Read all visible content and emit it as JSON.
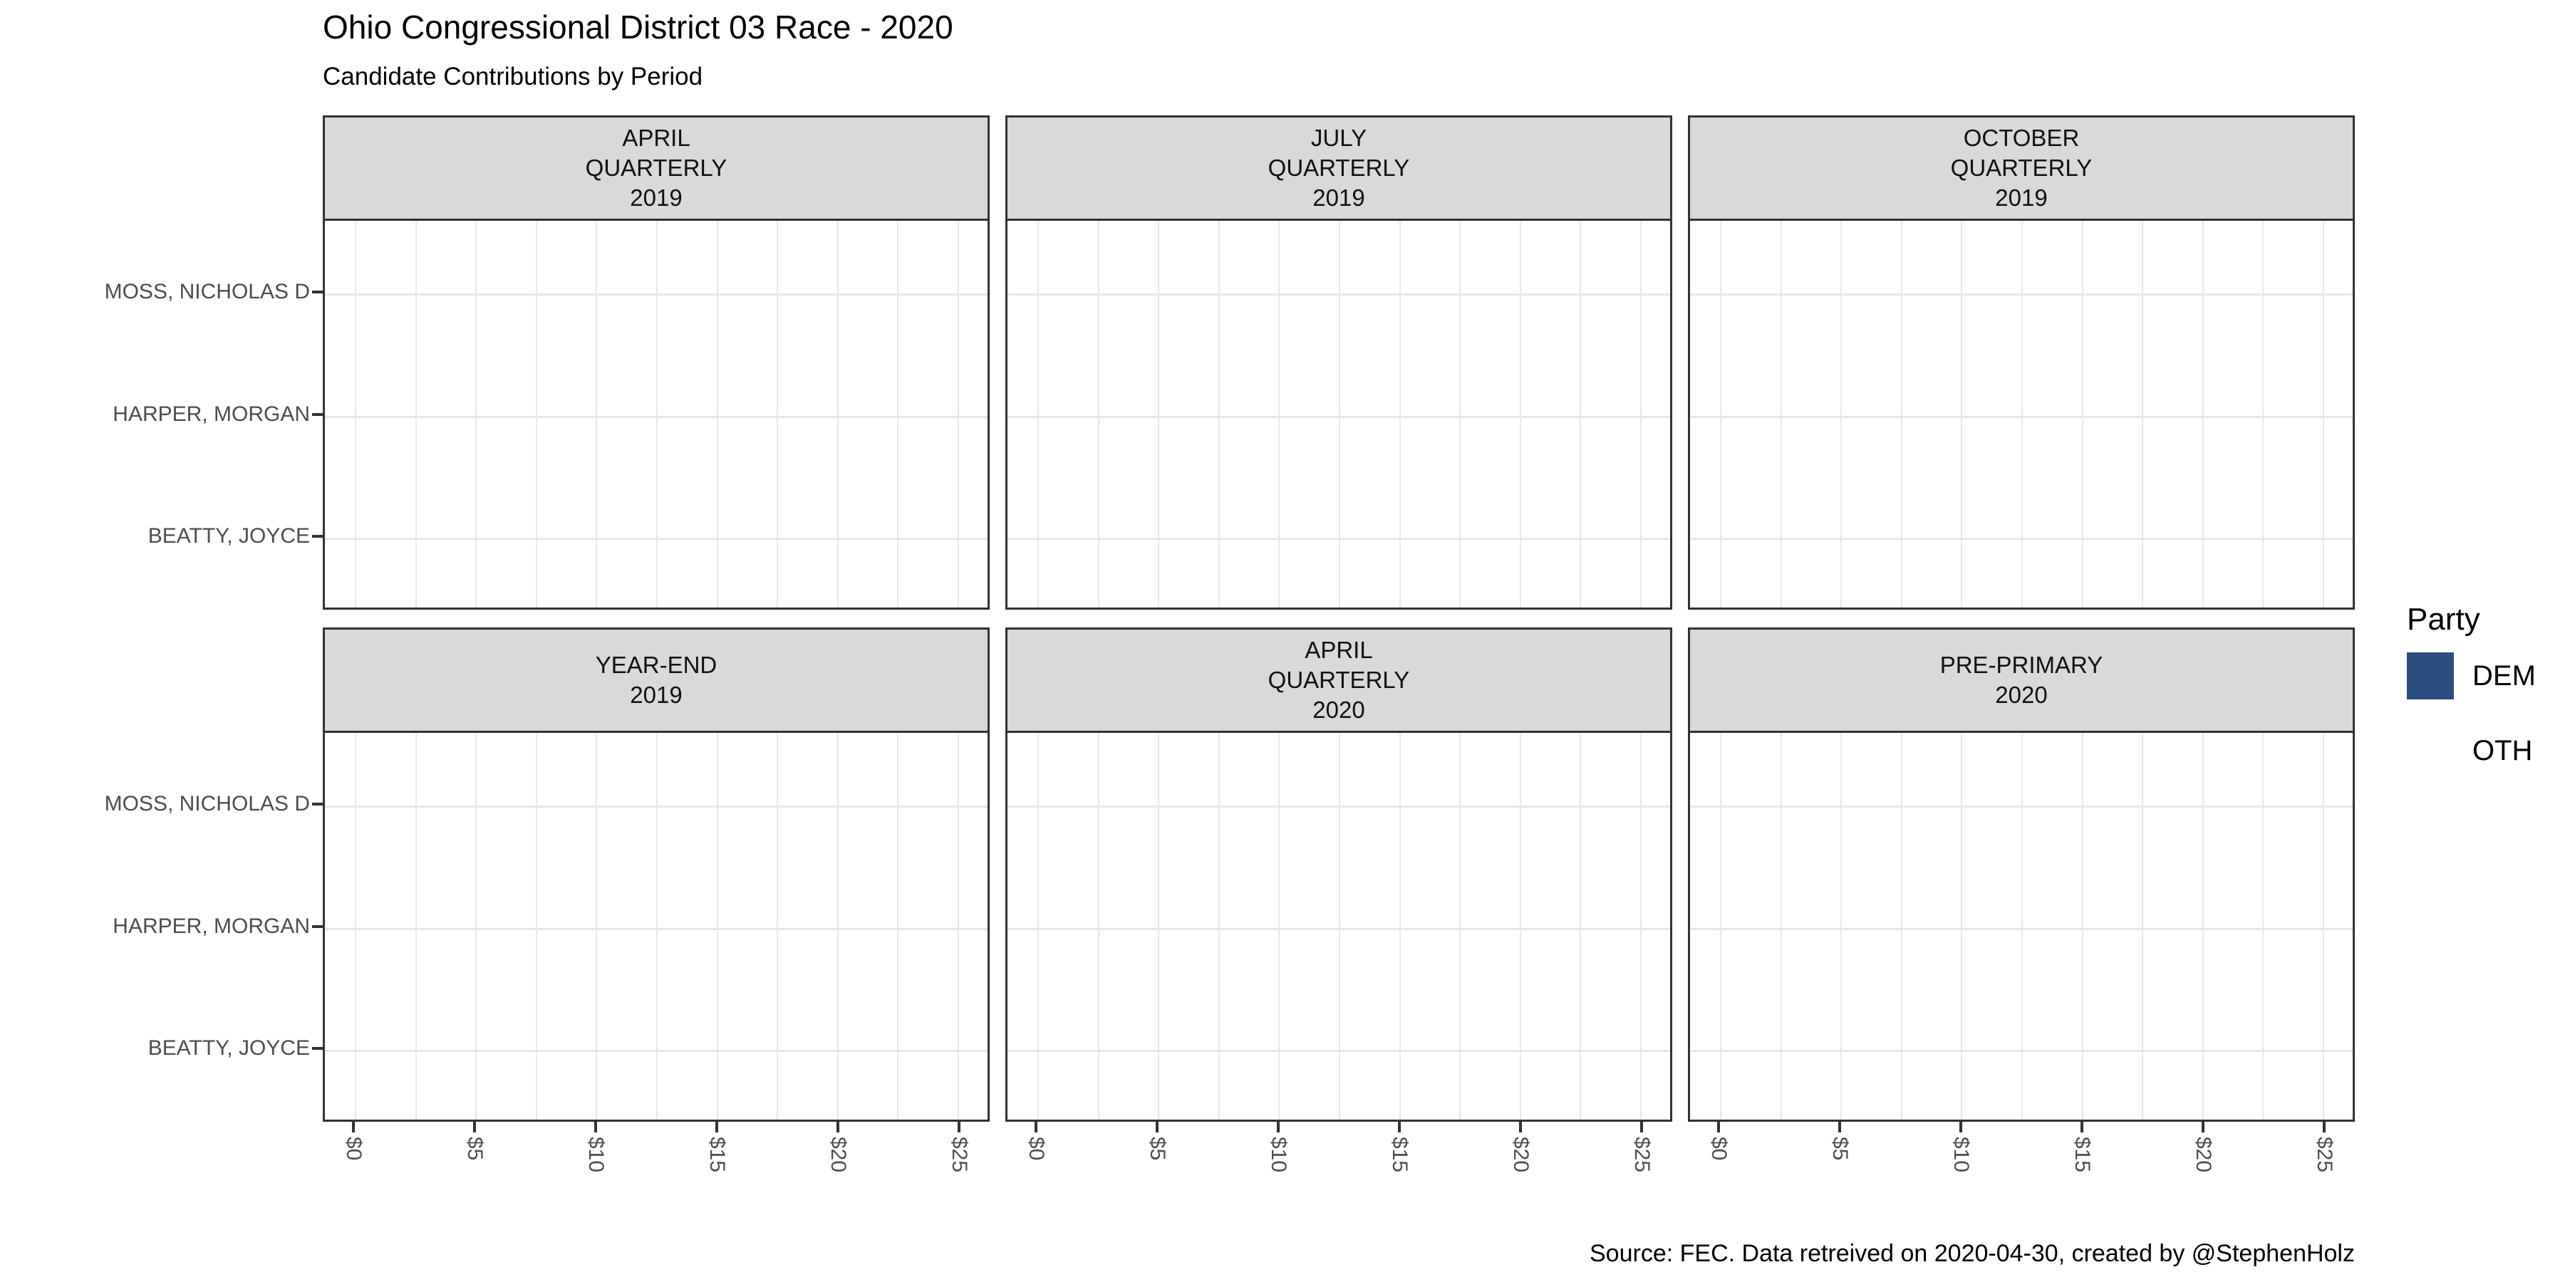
{
  "chart_data": {
    "type": "bar",
    "orientation": "horizontal",
    "title": "Ohio Congressional District 03 Race - 2020",
    "subtitle": "Candidate Contributions by Period",
    "caption": "Source: FEC. Data retreived on 2020-04-30, created by @StephenHolz",
    "facet_variable": "filing period",
    "facets": [
      {
        "label_lines": [
          "APRIL",
          "QUARTERLY",
          "2019"
        ]
      },
      {
        "label_lines": [
          "JULY",
          "QUARTERLY",
          "2019"
        ]
      },
      {
        "label_lines": [
          "OCTOBER",
          "QUARTERLY",
          "2019"
        ]
      },
      {
        "label_lines": [
          "YEAR-END",
          "2019"
        ]
      },
      {
        "label_lines": [
          "APRIL",
          "QUARTERLY",
          "2020"
        ]
      },
      {
        "label_lines": [
          "PRE-PRIMARY",
          "2020"
        ]
      }
    ],
    "categories": [
      "MOSS, NICHOLAS D",
      "HARPER, MORGAN",
      "BEATTY, JOYCE"
    ],
    "x_tick_values": [
      0,
      5,
      10,
      15,
      20,
      25
    ],
    "x_tick_labels": [
      "$0",
      "$5",
      "$10",
      "$15",
      "$20",
      "$25"
    ],
    "x_range_displayed": [
      0,
      25
    ],
    "minor_grid_step": 2.5,
    "grid": true,
    "series": [],
    "bars_visible": false,
    "legend_position": "right"
  },
  "legend": {
    "title": "Party",
    "entries": [
      {
        "label": "DEM",
        "color": "#2A4D80"
      },
      {
        "label": "OTH",
        "color": "#FFFFFF"
      }
    ]
  },
  "colors": {
    "strip_background": "#D9D9D9",
    "panel_border": "#333333",
    "gridline": "#E7E7E7",
    "axis_text": "#4D4D4D",
    "dem_blue": "#2A4D80"
  }
}
